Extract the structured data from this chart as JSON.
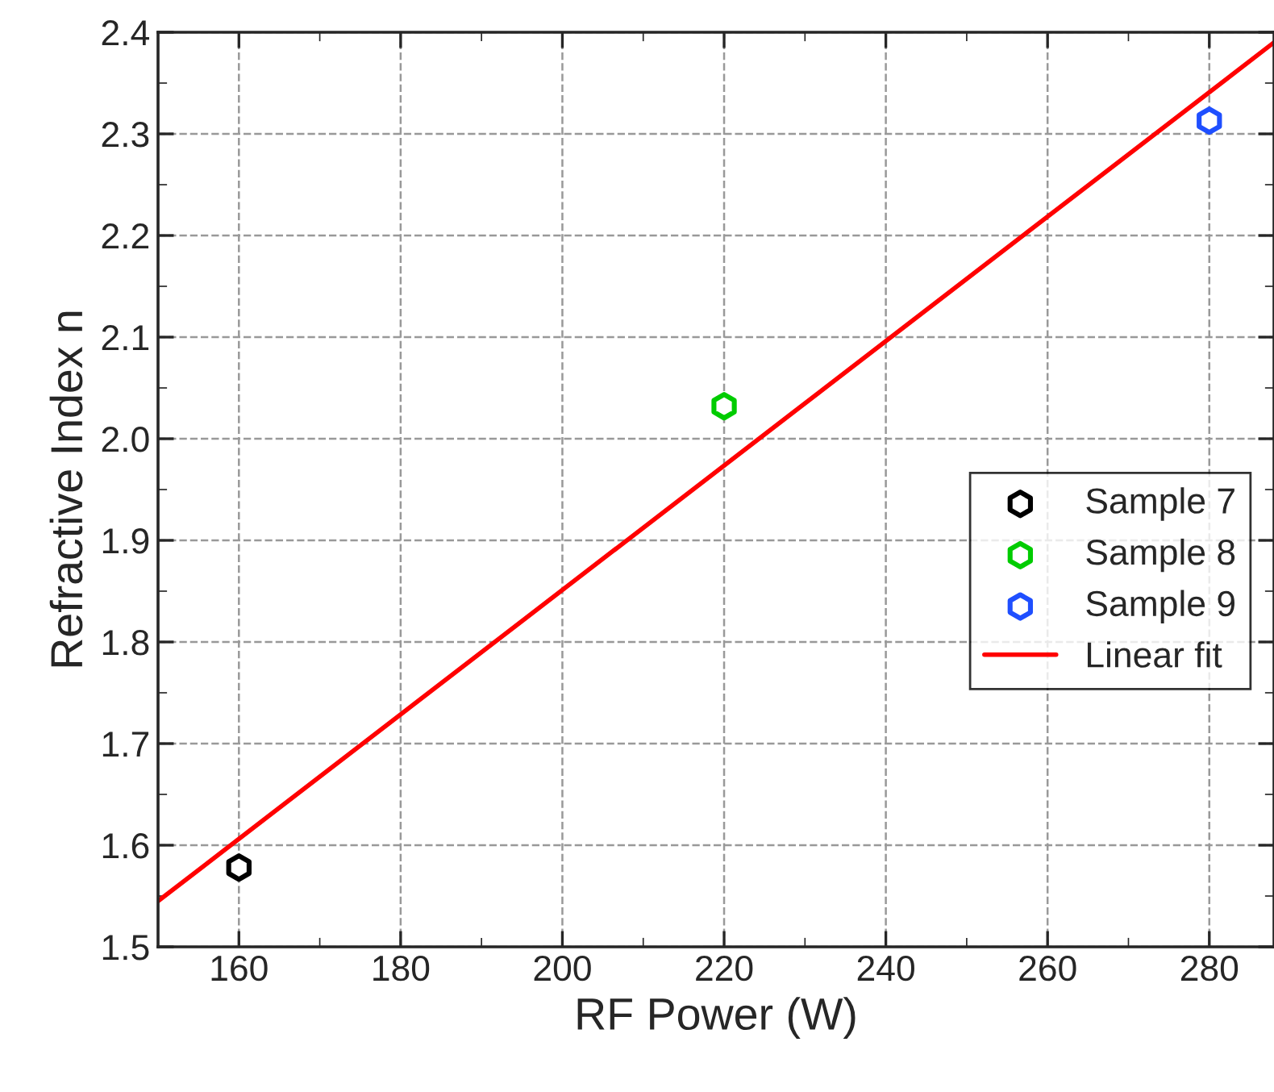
{
  "chart_data": {
    "type": "scatter",
    "xlabel": "RF Power (W)",
    "ylabel": "Refractive Index n",
    "xlim": [
      150,
      288
    ],
    "xticks": [
      160,
      180,
      200,
      220,
      240,
      260,
      280
    ],
    "ylim": [
      1.5,
      2.4
    ],
    "yticks": [
      1.5,
      1.6,
      1.7,
      1.8,
      1.9,
      {
        "value": 2.0,
        "label": "2.0"
      },
      2.1,
      2.2,
      2.3,
      2.4
    ],
    "grid": true,
    "legend": "right",
    "series": [
      {
        "name": "Sample 7",
        "color": "#000000",
        "x": [
          160
        ],
        "values": [
          1.578
        ]
      },
      {
        "name": "Sample 8",
        "color": "#00cc00",
        "x": [
          220
        ],
        "values": [
          2.032
        ]
      },
      {
        "name": "Sample 9",
        "color": "#1f4fff",
        "x": [
          280
        ],
        "values": [
          2.313
        ]
      },
      {
        "name": "Linear fit",
        "type": "line",
        "color": "#ff0000",
        "line_style": "solid",
        "marker": "none",
        "x": [
          150,
          288
        ],
        "values": [
          1.545,
          2.39
        ]
      }
    ]
  }
}
